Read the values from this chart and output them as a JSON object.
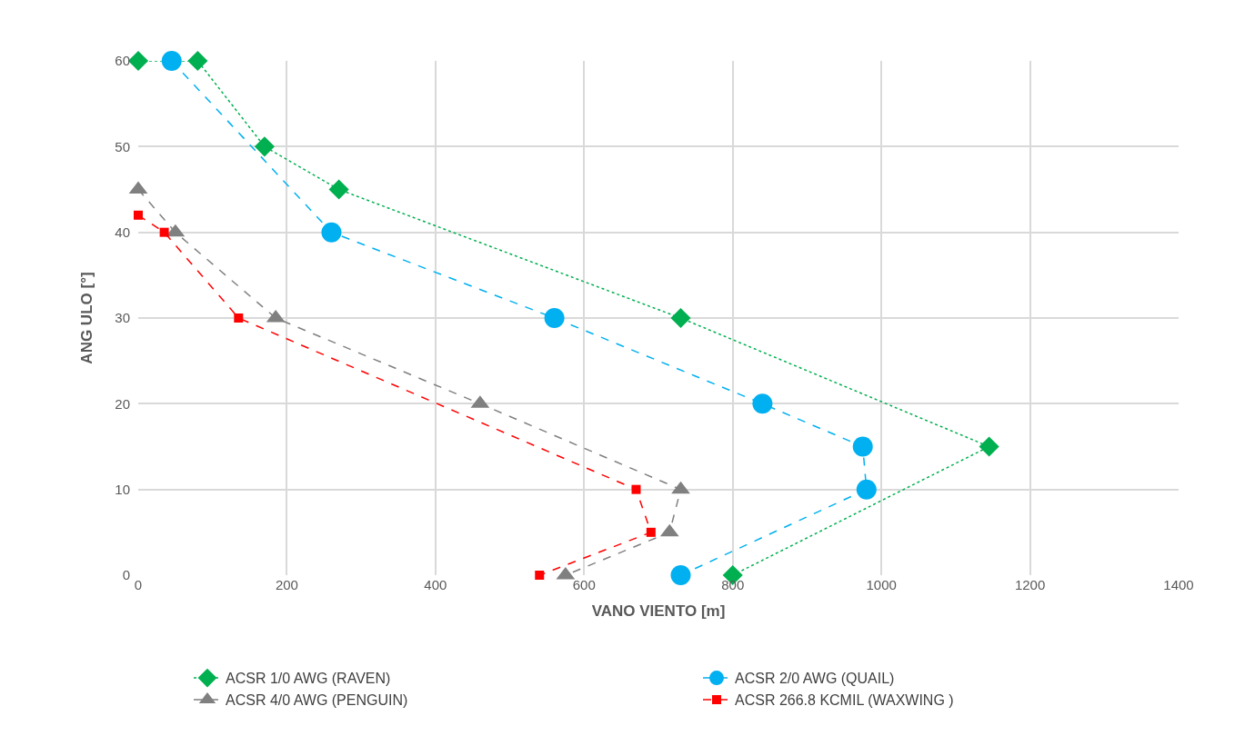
{
  "chart_data": {
    "type": "line",
    "xlabel": "VANO VIENTO [m]",
    "ylabel": "ANG ULO [°]",
    "xlim": [
      0,
      1400
    ],
    "xticks": [
      0,
      200,
      400,
      600,
      800,
      1000,
      1200,
      1400
    ],
    "ylim": [
      0,
      60
    ],
    "yticks": [
      0,
      10,
      20,
      30,
      40,
      50,
      60
    ],
    "grid": true,
    "legend": "bottom",
    "series": [
      {
        "name": "ACSR 1/0 AWG (RAVEN)",
        "color": "#00b050",
        "marker": "diamond",
        "line_style": "dotted",
        "x": [
          0,
          80,
          170,
          270,
          730,
          1145,
          800
        ],
        "values": [
          60,
          60,
          50,
          45,
          30,
          15,
          0
        ]
      },
      {
        "name": "ACSR 2/0 AWG (QUAIL)",
        "color": "#00b0f0",
        "marker": "circle",
        "line_style": "dashed",
        "x": [
          45,
          260,
          560,
          840,
          975,
          980,
          730
        ],
        "values": [
          60,
          40,
          30,
          20,
          15,
          10,
          0
        ]
      },
      {
        "name": "ACSR 4/0 AWG (PENGUIN)",
        "color": "#808080",
        "marker": "triangle",
        "line_style": "dashed",
        "x": [
          0,
          50,
          185,
          460,
          730,
          715,
          575
        ],
        "values": [
          45,
          40,
          30,
          20,
          10,
          5,
          0
        ]
      },
      {
        "name": "ACSR 266.8 KCMIL (WAXWING )",
        "color": "#ff0000",
        "marker": "square",
        "line_style": "dashed",
        "x": [
          0,
          35,
          135,
          670,
          690,
          540
        ],
        "values": [
          42,
          40,
          30,
          10,
          5,
          0
        ]
      }
    ]
  }
}
